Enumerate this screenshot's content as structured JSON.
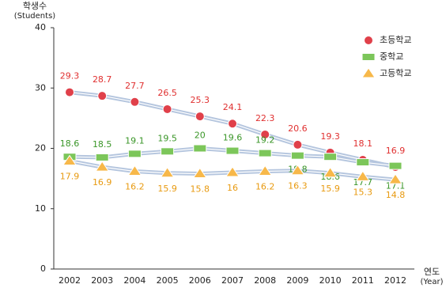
{
  "chart_data": {
    "type": "line",
    "y_label": [
      "학생수",
      "(Students)"
    ],
    "x_label": [
      "연도",
      "(Year)"
    ],
    "categories": [
      "2002",
      "2003",
      "2004",
      "2005",
      "2006",
      "2007",
      "2008",
      "2009",
      "2010",
      "2011",
      "2012"
    ],
    "ylim": [
      0,
      40
    ],
    "yticks": [
      0,
      10,
      20,
      30,
      40
    ],
    "grid": false,
    "legend": "top-right",
    "line_color": "#b4c5de",
    "series": [
      {
        "name": "초등학교",
        "color": "#e0404a",
        "label_color": "#e03030",
        "marker": "circle",
        "values": [
          29.3,
          28.7,
          27.7,
          26.5,
          25.3,
          24.1,
          22.3,
          20.6,
          19.3,
          18.1,
          16.9
        ]
      },
      {
        "name": "중학교",
        "color": "#7cc65a",
        "label_color": "#3a9628",
        "marker": "square",
        "values": [
          18.6,
          18.5,
          19.1,
          19.5,
          20,
          19.6,
          19.2,
          18.8,
          18.6,
          17.7,
          17.1
        ]
      },
      {
        "name": "고등학교",
        "color": "#f7b84a",
        "label_color": "#e89a10",
        "marker": "triangle",
        "values": [
          17.9,
          16.9,
          16.2,
          15.9,
          15.8,
          16,
          16.2,
          16.3,
          15.9,
          15.3,
          14.8
        ]
      }
    ]
  }
}
